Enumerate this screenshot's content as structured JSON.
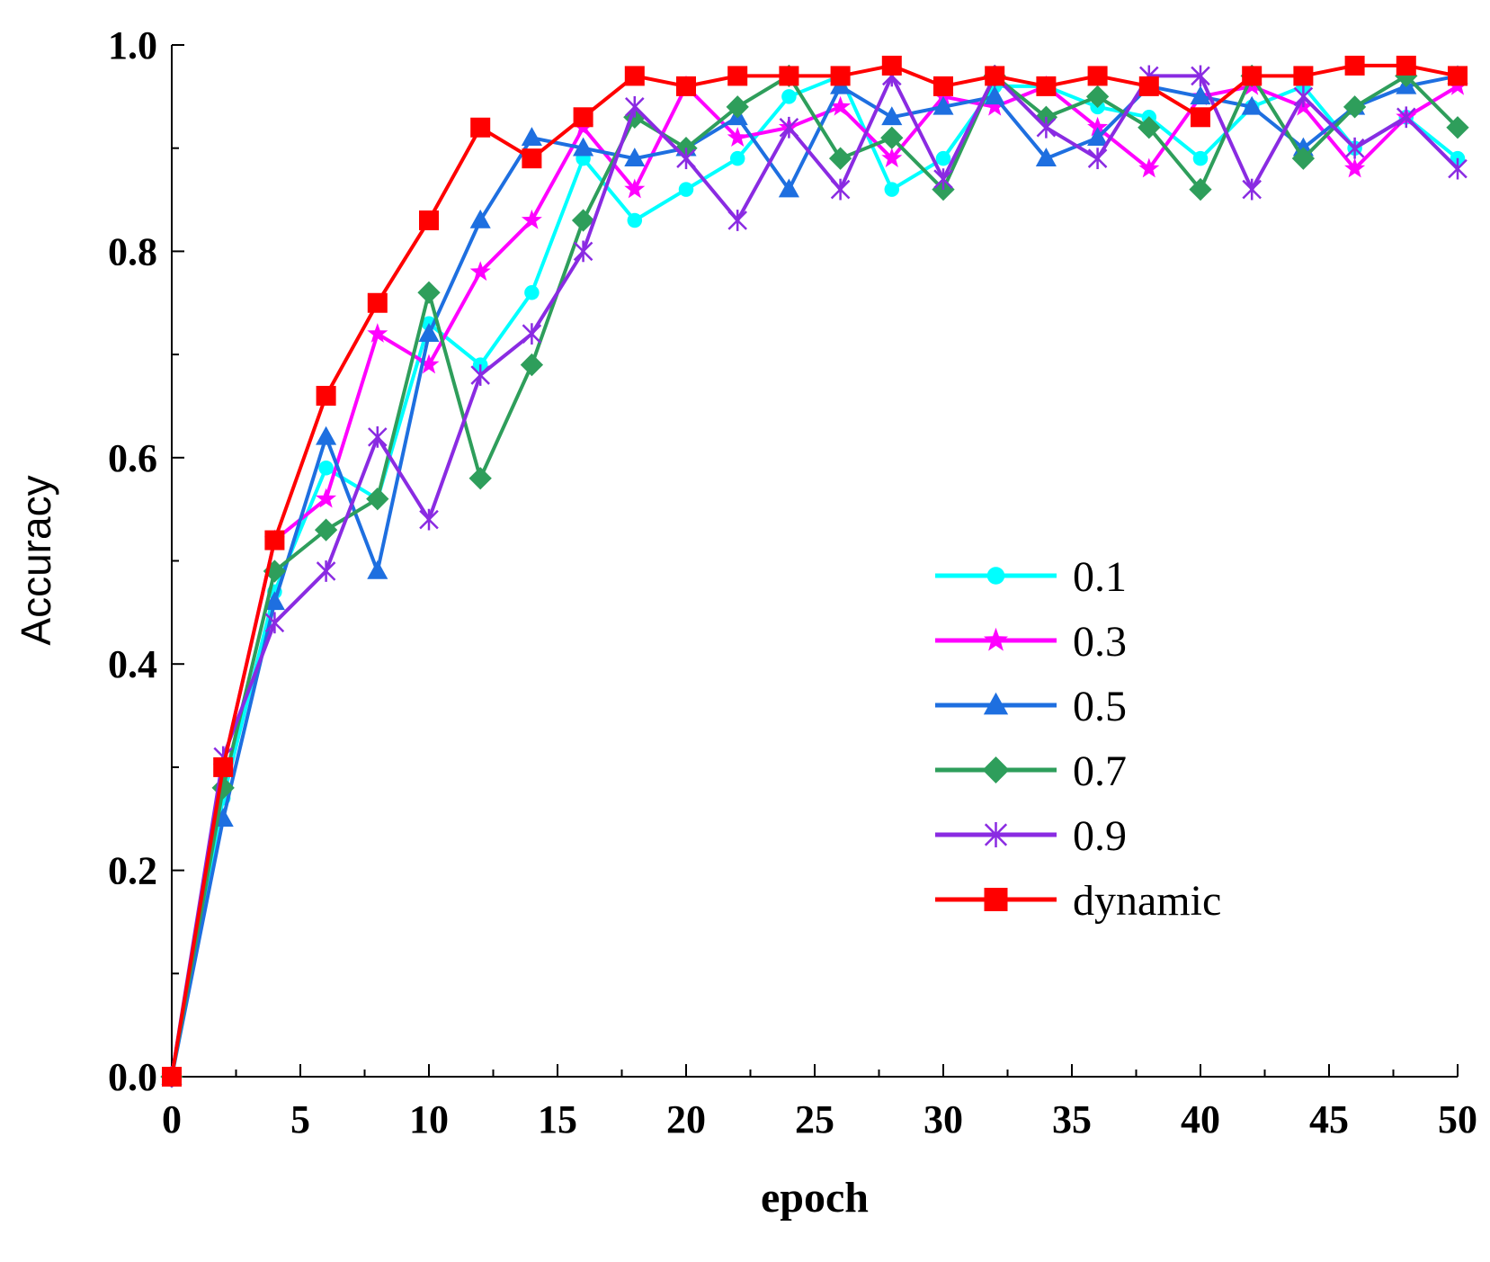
{
  "chart_data": {
    "type": "line",
    "title": "",
    "xlabel": "epoch",
    "ylabel": "Accuracy",
    "xlim": [
      0,
      50
    ],
    "ylim": [
      0.0,
      1.0
    ],
    "x_ticks": [
      0,
      5,
      10,
      15,
      20,
      25,
      30,
      35,
      40,
      45,
      50
    ],
    "x_tick_labels": [
      "0",
      "5",
      "10",
      "15",
      "20",
      "25",
      "30",
      "35",
      "40",
      "45",
      "50"
    ],
    "y_ticks": [
      0.0,
      0.2,
      0.4,
      0.6,
      0.8,
      1.0
    ],
    "y_tick_labels": [
      "0.0",
      "0.2",
      "0.4",
      "0.6",
      "0.8",
      "1.0"
    ],
    "grid": false,
    "legend_position": "center-right",
    "x": [
      0,
      2,
      4,
      6,
      8,
      10,
      12,
      14,
      16,
      18,
      20,
      22,
      24,
      26,
      28,
      30,
      32,
      34,
      36,
      38,
      40,
      42,
      44,
      46,
      48,
      50
    ],
    "series": [
      {
        "name": "0.1",
        "color": "#00FFFF",
        "marker": "circle",
        "values": [
          0.0,
          0.27,
          0.47,
          0.59,
          0.56,
          0.73,
          0.69,
          0.76,
          0.89,
          0.83,
          0.86,
          0.89,
          0.95,
          0.97,
          0.86,
          0.89,
          0.96,
          0.96,
          0.94,
          0.93,
          0.89,
          0.94,
          0.96,
          0.9,
          0.93,
          0.89
        ]
      },
      {
        "name": "0.3",
        "color": "#FF00FF",
        "marker": "star",
        "values": [
          0.0,
          0.3,
          0.52,
          0.56,
          0.72,
          0.69,
          0.78,
          0.83,
          0.92,
          0.86,
          0.96,
          0.91,
          0.92,
          0.94,
          0.89,
          0.95,
          0.94,
          0.96,
          0.92,
          0.88,
          0.95,
          0.96,
          0.94,
          0.88,
          0.93,
          0.96
        ]
      },
      {
        "name": "0.5",
        "color": "#1E6FE0",
        "marker": "triangle",
        "values": [
          0.0,
          0.25,
          0.46,
          0.62,
          0.49,
          0.72,
          0.83,
          0.91,
          0.9,
          0.89,
          0.9,
          0.93,
          0.86,
          0.96,
          0.93,
          0.94,
          0.95,
          0.89,
          0.91,
          0.96,
          0.95,
          0.94,
          0.9,
          0.94,
          0.96,
          0.97
        ]
      },
      {
        "name": "0.7",
        "color": "#2E9E5B",
        "marker": "diamond",
        "values": [
          0.0,
          0.28,
          0.49,
          0.53,
          0.56,
          0.76,
          0.58,
          0.69,
          0.83,
          0.93,
          0.9,
          0.94,
          0.97,
          0.89,
          0.91,
          0.86,
          0.97,
          0.93,
          0.95,
          0.92,
          0.86,
          0.97,
          0.89,
          0.94,
          0.97,
          0.92
        ]
      },
      {
        "name": "0.9",
        "color": "#8A2BE2",
        "marker": "asterisk",
        "values": [
          0.0,
          0.31,
          0.44,
          0.49,
          0.62,
          0.54,
          0.68,
          0.72,
          0.8,
          0.94,
          0.89,
          0.83,
          0.92,
          0.86,
          0.97,
          0.87,
          0.97,
          0.92,
          0.89,
          0.97,
          0.97,
          0.86,
          0.95,
          0.9,
          0.93,
          0.88
        ]
      },
      {
        "name": "dynamic",
        "color": "#FF0000",
        "marker": "square",
        "values": [
          0.0,
          0.3,
          0.52,
          0.66,
          0.75,
          0.83,
          0.92,
          0.89,
          0.93,
          0.97,
          0.96,
          0.97,
          0.97,
          0.97,
          0.98,
          0.96,
          0.97,
          0.96,
          0.97,
          0.96,
          0.93,
          0.97,
          0.97,
          0.98,
          0.98,
          0.97
        ]
      }
    ]
  }
}
